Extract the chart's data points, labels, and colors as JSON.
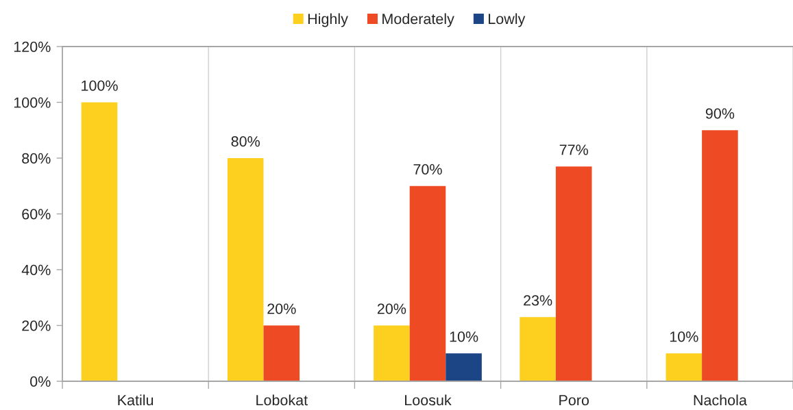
{
  "chart_data": {
    "type": "bar",
    "categories": [
      "Katilu",
      "Lobokat",
      "Loosuk",
      "Poro",
      "Nachola"
    ],
    "series": [
      {
        "name": "Highly",
        "color": "#fdd01f",
        "values": [
          100,
          80,
          20,
          23,
          10
        ],
        "value_labels": [
          "100%",
          "80%",
          "20%",
          "23%",
          "10%"
        ]
      },
      {
        "name": "Moderately",
        "color": "#ee4a24",
        "values": [
          null,
          20,
          70,
          77,
          90
        ],
        "value_labels": [
          null,
          "20%",
          "70%",
          "77%",
          "90%"
        ]
      },
      {
        "name": "Lowly",
        "color": "#1c4586",
        "values": [
          null,
          null,
          10,
          null,
          null
        ],
        "value_labels": [
          null,
          null,
          "10%",
          null,
          null
        ]
      }
    ],
    "ylim": [
      0,
      120
    ],
    "yticks": [
      {
        "value": 0,
        "label": "0%"
      },
      {
        "value": 20,
        "label": "20%"
      },
      {
        "value": 40,
        "label": "40%"
      },
      {
        "value": 60,
        "label": "60%"
      },
      {
        "value": 80,
        "label": "80%"
      },
      {
        "value": 100,
        "label": "100%"
      },
      {
        "value": 120,
        "label": "120%"
      }
    ],
    "grid": "x",
    "legend": "top"
  }
}
